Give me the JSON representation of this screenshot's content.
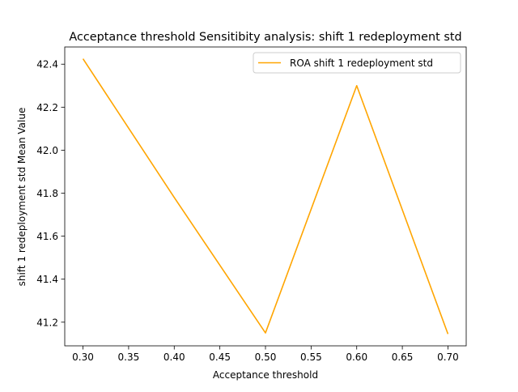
{
  "chart_data": {
    "type": "line",
    "title": "Acceptance threshold Sensitibity analysis: shift 1 redeployment std",
    "xlabel": "Acceptance threshold",
    "ylabel": "shift 1 redeployment std Mean Value",
    "xlim": [
      0.28,
      0.72
    ],
    "ylim": [
      41.09,
      42.48
    ],
    "xticks": [
      "0.30",
      "0.35",
      "0.40",
      "0.45",
      "0.50",
      "0.55",
      "0.60",
      "0.65",
      "0.70"
    ],
    "yticks": [
      "41.2",
      "41.4",
      "41.6",
      "41.8",
      "42.0",
      "42.2",
      "42.4"
    ],
    "grid": false,
    "legend_position": "upper-right",
    "series": [
      {
        "name": "ROA shift 1 redeployment std",
        "color": "#ffa500",
        "x": [
          0.3,
          0.4,
          0.5,
          0.6,
          0.7
        ],
        "y": [
          42.425,
          41.78,
          41.15,
          42.3,
          41.145
        ]
      }
    ]
  }
}
